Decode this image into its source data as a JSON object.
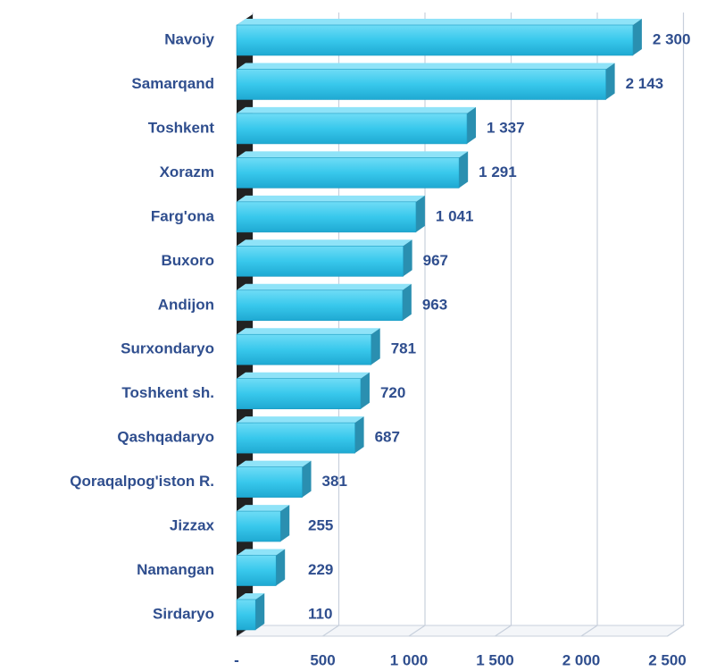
{
  "chart_data": {
    "type": "bar",
    "orientation": "horizontal",
    "categories": [
      "Navoiy",
      "Samarqand",
      "Toshkent",
      "Xorazm",
      "Farg'ona",
      "Buxoro",
      "Andijon",
      "Surxondaryo",
      "Toshkent sh.",
      "Qashqadaryo",
      "Qoraqalpog'iston R.",
      "Jizzax",
      "Namangan",
      "Sirdaryo"
    ],
    "values": [
      2300,
      2143,
      1337,
      1291,
      1041,
      967,
      963,
      781,
      720,
      687,
      381,
      255,
      229,
      110
    ],
    "value_labels": [
      "2 300",
      "2 143",
      "1 337",
      "1 291",
      "1 041",
      "967",
      "963",
      "781",
      "720",
      "687",
      "381",
      "255",
      "229",
      "110"
    ],
    "color": "#38c8ec",
    "xlim": [
      0,
      2500
    ],
    "xticks": [
      {
        "value": 0,
        "label": "-"
      },
      500,
      {
        "value": 1000,
        "label": "1 000"
      },
      {
        "value": 1500,
        "label": "1 500"
      },
      {
        "value": 2000,
        "label": "2 000"
      },
      {
        "value": 2500,
        "label": "2 500"
      }
    ],
    "grid": true
  }
}
